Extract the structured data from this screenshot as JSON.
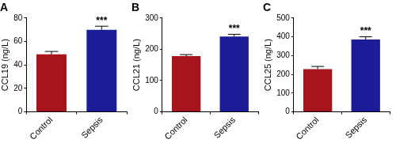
{
  "chart_data": [
    {
      "type": "bar",
      "title": "A",
      "y_label": "CCL19 (ng/L)",
      "categories": [
        "Control",
        "Sepsis"
      ],
      "values": [
        49,
        70
      ],
      "errors": [
        2.5,
        3
      ],
      "colors": [
        "#a8141b",
        "#1c1c99"
      ],
      "ylim": [
        0,
        80
      ],
      "yticks": [
        0,
        20,
        40,
        60,
        80
      ],
      "grid": false,
      "annotations": [
        {
          "category": "Sepsis",
          "text": "***"
        }
      ]
    },
    {
      "type": "bar",
      "title": "B",
      "y_label": "CCL21 (ng/L)",
      "categories": [
        "Control",
        "Sepsis"
      ],
      "values": [
        178,
        241
      ],
      "errors": [
        5,
        7
      ],
      "colors": [
        "#a8141b",
        "#1c1c99"
      ],
      "ylim": [
        0,
        300
      ],
      "yticks": [
        0,
        100,
        200,
        300
      ],
      "grid": false,
      "annotations": [
        {
          "category": "Sepsis",
          "text": "***"
        }
      ]
    },
    {
      "type": "bar",
      "title": "C",
      "y_label": "CCL25 (ng/L)",
      "categories": [
        "Control",
        "Sepsis"
      ],
      "values": [
        228,
        385
      ],
      "errors": [
        14,
        15
      ],
      "colors": [
        "#a8141b",
        "#1c1c99"
      ],
      "ylim": [
        0,
        500
      ],
      "yticks": [
        0,
        100,
        200,
        300,
        400,
        500
      ],
      "grid": false,
      "annotations": [
        {
          "category": "Sepsis",
          "text": "***"
        }
      ]
    }
  ]
}
